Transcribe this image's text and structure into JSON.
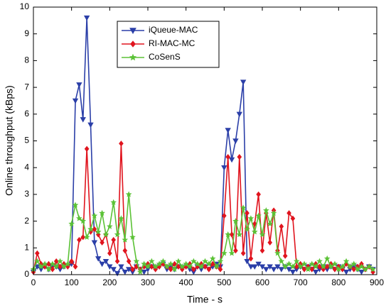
{
  "chart_data": {
    "type": "line",
    "xlabel": "Time - s",
    "ylabel": "Online throughput (kBps)",
    "x": [
      0,
      10,
      20,
      30,
      40,
      50,
      60,
      70,
      80,
      90,
      100,
      110,
      120,
      130,
      140,
      150,
      160,
      170,
      180,
      190,
      200,
      210,
      220,
      230,
      240,
      250,
      260,
      270,
      280,
      290,
      300,
      310,
      320,
      330,
      340,
      350,
      360,
      370,
      380,
      390,
      400,
      410,
      420,
      430,
      440,
      450,
      460,
      470,
      480,
      490,
      500,
      510,
      520,
      530,
      540,
      550,
      560,
      570,
      580,
      590,
      600,
      610,
      620,
      630,
      640,
      650,
      660,
      670,
      680,
      690,
      700,
      710,
      720,
      730,
      740,
      750,
      760,
      770,
      780,
      790,
      800,
      810,
      820,
      830,
      840,
      850,
      860,
      870,
      880,
      890
    ],
    "series": [
      {
        "name": "iQueue-MAC",
        "color": "#2b3fa8",
        "marker": "triangle-down",
        "values": [
          0.1,
          0.3,
          0.2,
          0.3,
          0.2,
          0.3,
          0.3,
          0.2,
          0.3,
          0.3,
          0.4,
          6.5,
          7.1,
          5.8,
          9.6,
          5.6,
          1.2,
          0.6,
          0.4,
          0.5,
          0.3,
          0.2,
          0.05,
          0.3,
          0.1,
          0.2,
          0.1,
          0.3,
          0.2,
          0.1,
          0.2,
          0.3,
          0.2,
          0.3,
          0.4,
          0.2,
          0.3,
          0.2,
          0.3,
          0.2,
          0.3,
          0.2,
          0.1,
          0.3,
          0.2,
          0.3,
          0.2,
          0.3,
          0.4,
          0.3,
          4.0,
          5.4,
          4.3,
          5.0,
          6.0,
          7.2,
          0.5,
          0.3,
          0.3,
          0.4,
          0.3,
          0.2,
          0.3,
          0.2,
          0.3,
          0.2,
          0.3,
          0.2,
          0.1,
          0.2,
          0.3,
          0.2,
          0.3,
          0.2,
          0.1,
          0.2,
          0.3,
          0.2,
          0.3,
          0.2,
          0.3,
          0.2,
          0.1,
          0.2,
          0.3,
          0.2,
          0.1,
          0.2,
          0.3,
          0.2
        ]
      },
      {
        "name": "RI-MAC-MC",
        "color": "#e0141e",
        "marker": "diamond",
        "values": [
          0.1,
          0.8,
          0.4,
          0.3,
          0.4,
          0.2,
          0.5,
          0.3,
          0.4,
          0.3,
          0.5,
          0.3,
          1.3,
          1.4,
          4.7,
          1.6,
          1.7,
          1.5,
          1.2,
          1.5,
          0.8,
          1.3,
          0.5,
          4.9,
          0.9,
          0.5,
          0.2,
          0.3,
          0.2,
          0.3,
          0.4,
          0.3,
          0.2,
          0.3,
          0.4,
          0.3,
          0.2,
          0.4,
          0.3,
          0.2,
          0.3,
          0.4,
          0.2,
          0.3,
          0.4,
          0.3,
          0.2,
          0.4,
          0.3,
          0.2,
          2.2,
          4.4,
          1.5,
          0.9,
          4.4,
          0.8,
          2.3,
          0.6,
          1.9,
          3.0,
          0.9,
          2.3,
          1.2,
          2.4,
          0.9,
          1.8,
          0.7,
          2.3,
          2.1,
          0.3,
          0.4,
          0.2,
          0.3,
          0.2,
          0.4,
          0.3,
          0.2,
          0.3,
          0.4,
          0.2,
          0.3,
          0.2,
          0.4,
          0.3,
          0.2,
          0.3,
          0.4,
          0.2,
          0.3,
          0.1
        ]
      },
      {
        "name": "CoSenS",
        "color": "#5bc236",
        "marker": "star",
        "values": [
          0.2,
          0.5,
          0.3,
          0.4,
          0.2,
          0.4,
          0.3,
          0.5,
          0.3,
          0.4,
          1.9,
          2.6,
          2.1,
          2.0,
          1.4,
          1.7,
          2.2,
          1.6,
          2.3,
          1.5,
          1.8,
          2.7,
          1.5,
          2.1,
          1.3,
          3.0,
          1.4,
          0.5,
          0.1,
          0.4,
          0.3,
          0.5,
          0.3,
          0.4,
          0.5,
          0.3,
          0.4,
          0.2,
          0.5,
          0.3,
          0.4,
          0.3,
          0.5,
          0.4,
          0.3,
          0.5,
          0.4,
          0.6,
          0.3,
          0.5,
          0.8,
          1.5,
          0.8,
          2.0,
          1.5,
          2.5,
          1.7,
          2.1,
          1.6,
          2.2,
          1.5,
          2.4,
          1.9,
          2.3,
          0.8,
          0.5,
          0.3,
          0.4,
          0.3,
          0.5,
          0.3,
          0.4,
          0.2,
          0.4,
          0.3,
          0.5,
          0.3,
          0.6,
          0.3,
          0.4,
          0.2,
          0.3,
          0.5,
          0.3,
          0.4,
          0.2,
          0.3,
          0.2,
          0.3,
          0.2
        ]
      }
    ],
    "xlim": [
      0,
      900
    ],
    "xticks": [
      0,
      100,
      200,
      300,
      400,
      500,
      600,
      700,
      800,
      900
    ],
    "ylim": [
      0,
      10
    ],
    "yticks": [
      0,
      1,
      2,
      3,
      4,
      5,
      6,
      7,
      8,
      9,
      10
    ],
    "grid": false,
    "legend": "upper-left"
  }
}
